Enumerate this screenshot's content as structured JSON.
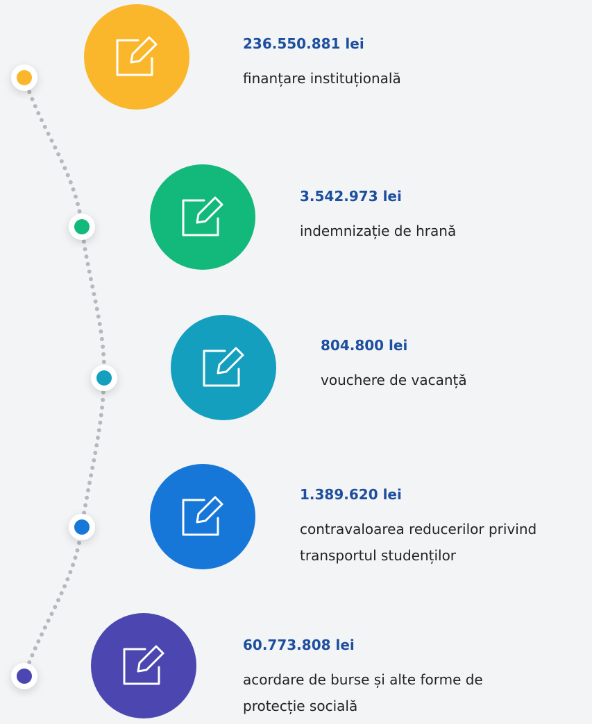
{
  "items": [
    {
      "amount": "236.550.881 lei",
      "description": [
        "finanțare instituțională"
      ],
      "color": "#fbb72b"
    },
    {
      "amount": "3.542.973 lei",
      "description": [
        "indemnizație de hrană"
      ],
      "color": "#12b97a"
    },
    {
      "amount": "804.800 lei",
      "description": [
        "vouchere de vacanță"
      ],
      "color": "#159fbf"
    },
    {
      "amount": "1.389.620 lei",
      "description": [
        "contravaloarea reducerilor privind",
        "transportul studenților"
      ],
      "color": "#1677d8"
    },
    {
      "amount": "60.773.808 lei",
      "description": [
        "acordare de burse și alte forme de",
        "protecție socială"
      ],
      "color": "#4c47b0"
    }
  ]
}
